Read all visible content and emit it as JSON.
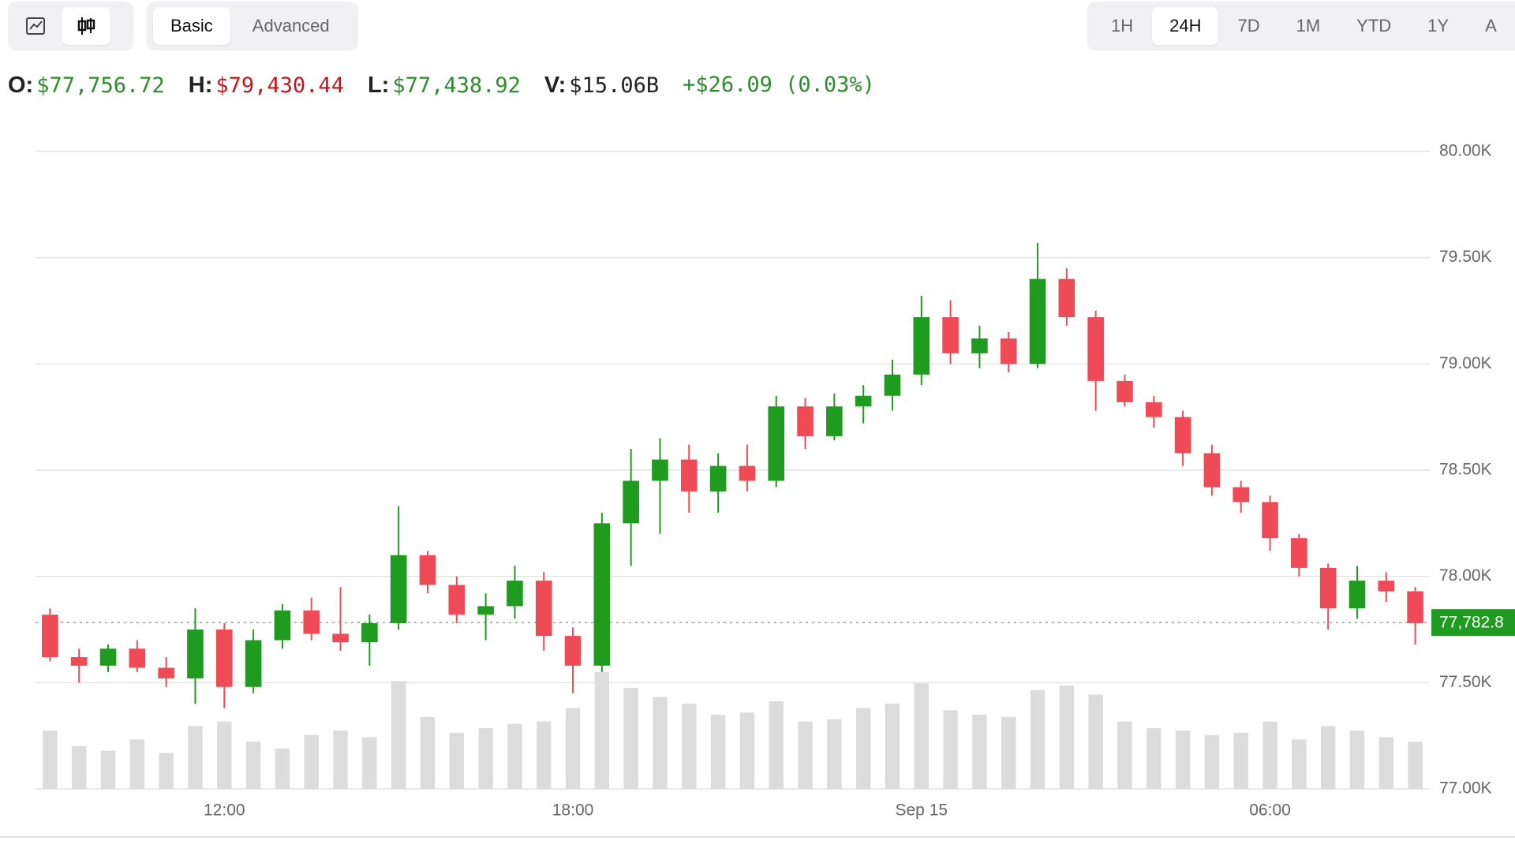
{
  "toolbar": {
    "modes": [
      "Basic",
      "Advanced"
    ],
    "ranges": [
      "1H",
      "24H",
      "7D",
      "1M",
      "YTD",
      "1Y",
      "A"
    ]
  },
  "stats": [
    {
      "label": "O:",
      "value": "$77,756.72",
      "color": "#2e8b2e"
    },
    {
      "label": "H:",
      "value": "$79,430.44",
      "color": "#c4161c"
    },
    {
      "label": "L:",
      "value": "$77,438.92",
      "color": "#2e8b2e"
    },
    {
      "label": "V:",
      "value": "$15.06B",
      "color": "#222222"
    }
  ],
  "change": "+$26.09 (0.03%)",
  "chart_data": {
    "type": "candlestick",
    "categories": [
      null,
      null,
      null,
      null,
      null,
      null,
      "12:00",
      null,
      null,
      null,
      null,
      null,
      null,
      null,
      null,
      null,
      null,
      null,
      "18:00",
      null,
      null,
      null,
      null,
      null,
      null,
      null,
      null,
      null,
      null,
      null,
      "Sep 15",
      null,
      null,
      null,
      null,
      null,
      null,
      null,
      null,
      null,
      null,
      null,
      "06:00",
      null,
      null,
      null,
      null,
      null
    ],
    "open": [
      77820,
      77620,
      77580,
      77660,
      77570,
      77520,
      77750,
      77480,
      77700,
      77840,
      77730,
      77690,
      77780,
      78100,
      77960,
      77820,
      77860,
      77980,
      77720,
      77580,
      78250,
      78450,
      78550,
      78400,
      78520,
      78450,
      78800,
      78660,
      78800,
      78850,
      78950,
      79220,
      79050,
      79120,
      79000,
      79400,
      79220,
      78920,
      78820,
      78750,
      78580,
      78420,
      78350,
      78180,
      78040,
      77850,
      77980,
      77930
    ],
    "high": [
      77850,
      77660,
      77680,
      77700,
      77620,
      77850,
      77780,
      77750,
      77870,
      77900,
      77950,
      77820,
      78330,
      78120,
      78000,
      77920,
      78050,
      78020,
      77760,
      78300,
      78600,
      78650,
      78620,
      78580,
      78620,
      78850,
      78840,
      78860,
      78900,
      79020,
      79320,
      79300,
      79180,
      79150,
      79570,
      79450,
      79250,
      78950,
      78850,
      78780,
      78620,
      78450,
      78380,
      78200,
      78060,
      78050,
      78020,
      77950
    ],
    "low": [
      77600,
      77500,
      77550,
      77550,
      77480,
      77400,
      77380,
      77450,
      77660,
      77700,
      77650,
      77580,
      77750,
      77920,
      77780,
      77700,
      77800,
      77650,
      77450,
      77550,
      78050,
      78200,
      78300,
      78300,
      78400,
      78420,
      78600,
      78640,
      78720,
      78780,
      78900,
      79000,
      78980,
      78960,
      78980,
      79180,
      78780,
      78800,
      78700,
      78520,
      78380,
      78300,
      78120,
      78000,
      77750,
      77800,
      77880,
      77680
    ],
    "close": [
      77620,
      77580,
      77660,
      77570,
      77520,
      77750,
      77480,
      77700,
      77840,
      77730,
      77690,
      77780,
      78100,
      77960,
      77820,
      77860,
      77980,
      77720,
      77580,
      78250,
      78450,
      78550,
      78400,
      78520,
      78450,
      78800,
      78660,
      78800,
      78850,
      78950,
      79220,
      79050,
      79120,
      79000,
      79400,
      79220,
      78920,
      78820,
      78750,
      78580,
      78420,
      78350,
      78180,
      78040,
      77850,
      77980,
      77930,
      77780
    ],
    "volume": [
      260,
      190,
      170,
      220,
      160,
      280,
      300,
      210,
      180,
      240,
      260,
      230,
      480,
      320,
      250,
      270,
      290,
      300,
      360,
      520,
      450,
      410,
      380,
      330,
      340,
      390,
      300,
      310,
      360,
      380,
      470,
      350,
      330,
      320,
      440,
      460,
      420,
      300,
      270,
      260,
      240,
      250,
      300,
      220,
      280,
      260,
      230,
      210
    ],
    "up_color": "#1f9b1f",
    "down_color": "#ee4b56",
    "volume_color": "#dcdcdc",
    "ylim": [
      77000,
      80000
    ],
    "yticks": [
      {
        "value": 77000,
        "label": "77.00K"
      },
      {
        "value": 77500,
        "label": "77.50K"
      },
      {
        "value": 78000,
        "label": "78.00K"
      },
      {
        "value": 78500,
        "label": "78.50K"
      },
      {
        "value": 79000,
        "label": "79.00K"
      },
      {
        "value": 79500,
        "label": "79.50K"
      },
      {
        "value": 80000,
        "label": "80.00K"
      }
    ],
    "grid": true,
    "last_price": {
      "value": 77782.8,
      "label": "77,782.8"
    }
  }
}
